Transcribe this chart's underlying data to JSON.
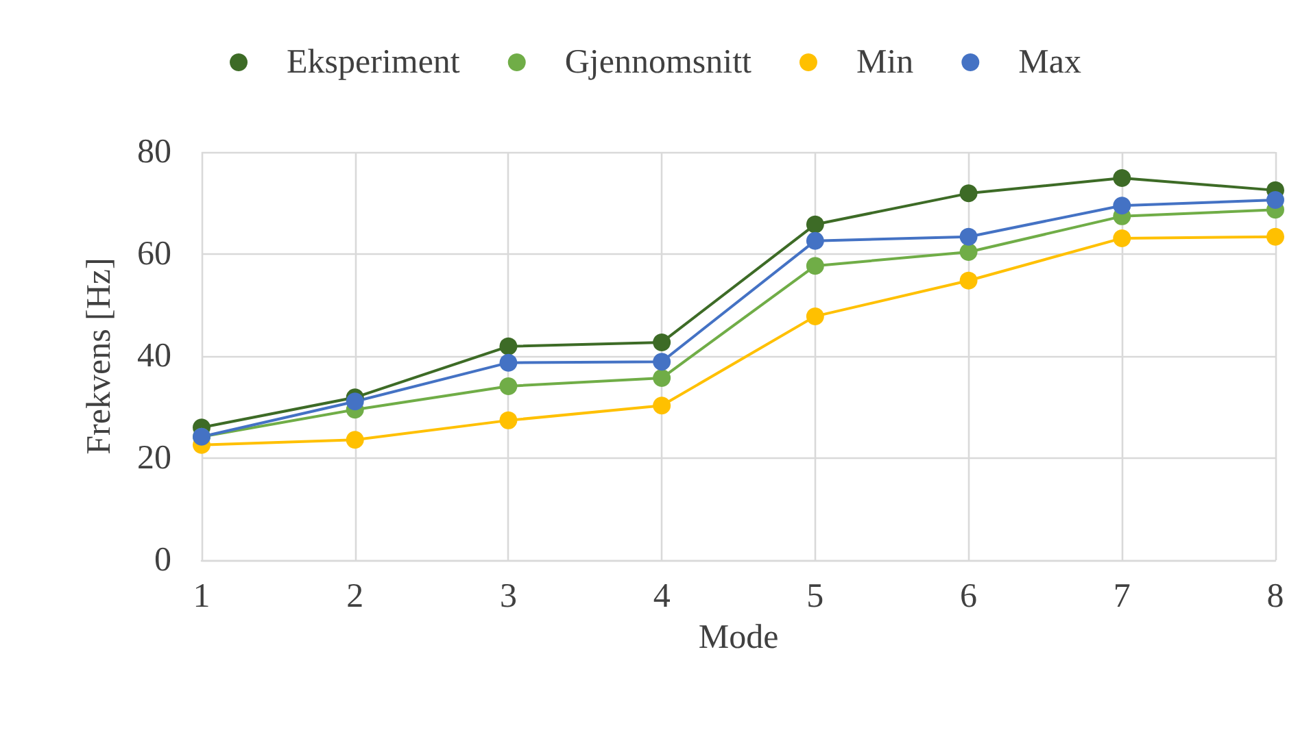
{
  "chart_data": {
    "type": "line",
    "xlabel": "Mode",
    "ylabel": "Frekvens [Hz]",
    "categories": [
      "1",
      "2",
      "3",
      "4",
      "5",
      "6",
      "7",
      "8"
    ],
    "series": [
      {
        "name": "Eksperiment",
        "color": "#3d6b26",
        "values": [
          26.0,
          31.9,
          41.9,
          42.7,
          65.8,
          71.9,
          74.9,
          72.5
        ]
      },
      {
        "name": "Gjennomsnitt",
        "color": "#70ad47",
        "values": [
          24.2,
          29.5,
          34.1,
          35.7,
          57.7,
          60.4,
          67.4,
          68.7
        ]
      },
      {
        "name": "Min",
        "color": "#ffc000",
        "values": [
          22.6,
          23.6,
          27.4,
          30.3,
          47.8,
          54.8,
          63.1,
          63.4
        ]
      },
      {
        "name": "Max",
        "color": "#4472c4",
        "values": [
          24.2,
          31.1,
          38.7,
          38.9,
          62.6,
          63.4,
          69.5,
          70.6
        ]
      }
    ],
    "ylim": [
      0,
      80
    ],
    "yticks": [
      0,
      20,
      40,
      60,
      80
    ],
    "grid": true,
    "legend": "top",
    "marker": "circle",
    "line_style": "solid"
  }
}
